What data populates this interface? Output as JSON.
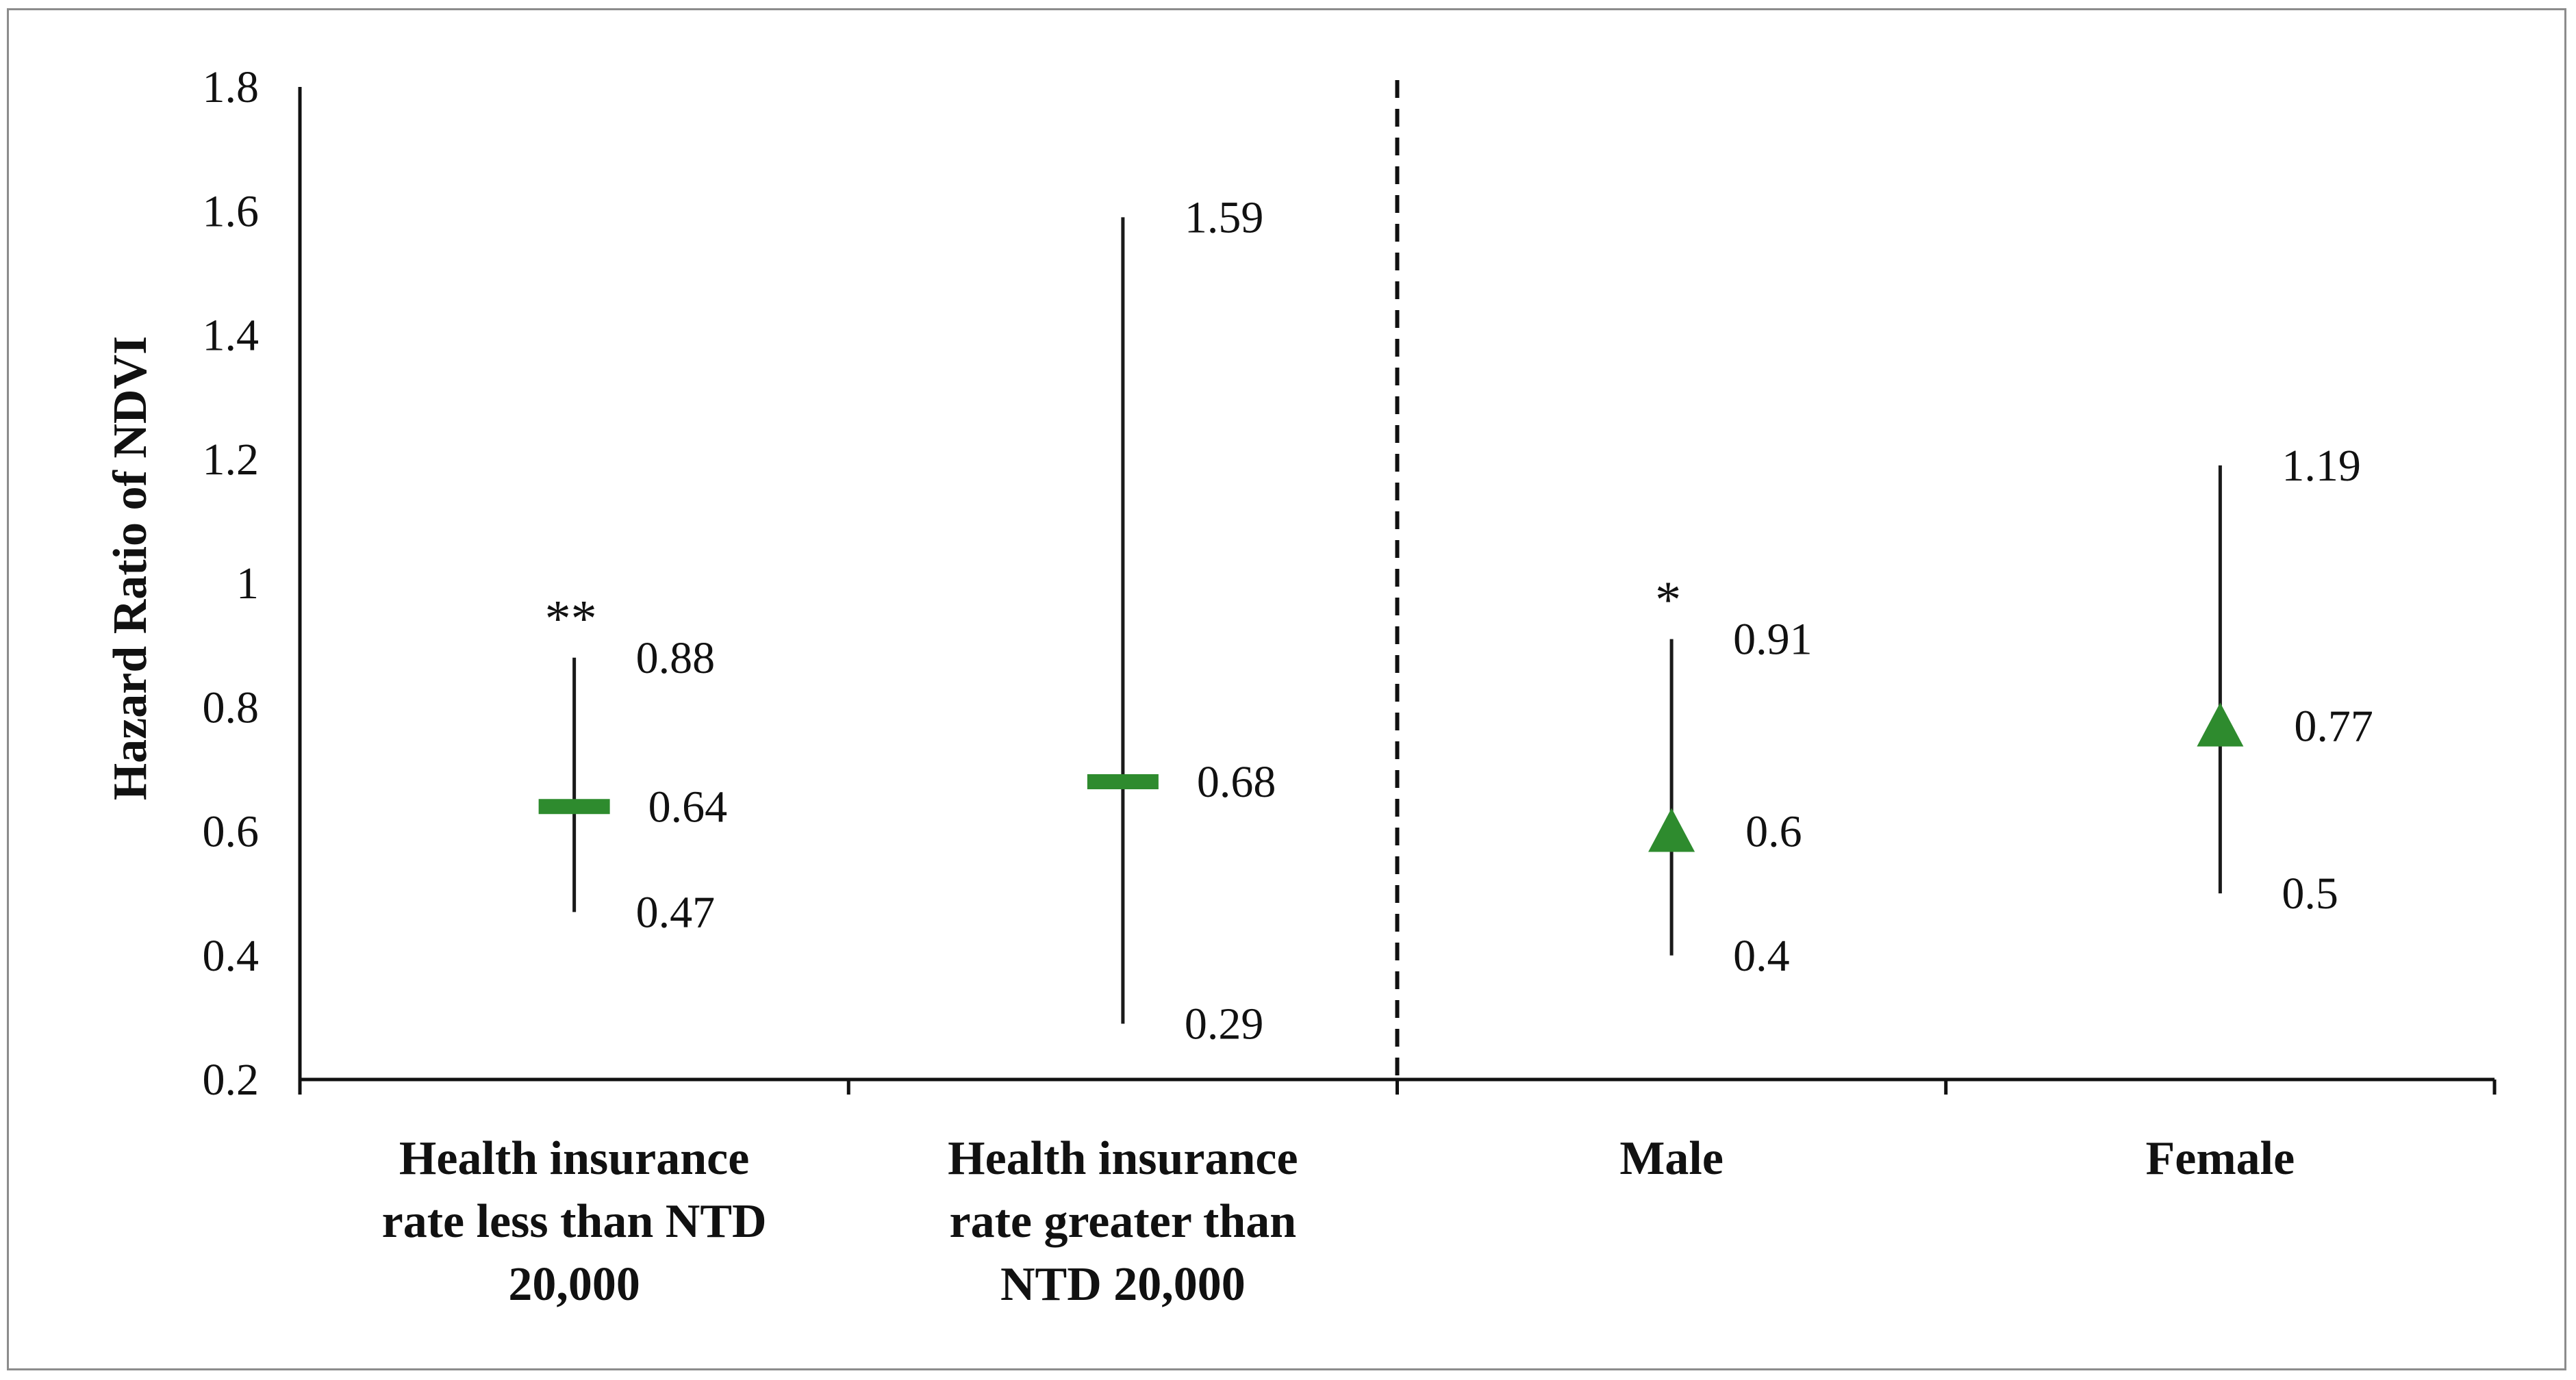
{
  "chart_data": {
    "type": "scatter",
    "title": "",
    "xlabel": "",
    "ylabel": "Hazard Ratio of NDVI",
    "ylim": [
      0.2,
      1.8
    ],
    "yticks": [
      "0.2",
      "0.4",
      "0.6",
      "0.8",
      "1",
      "1.2",
      "1.4",
      "1.6",
      "1.8"
    ],
    "grid": false,
    "legend": "none",
    "divider_after_category": 2,
    "colors": {
      "marker": "#2e8b2e",
      "whisker": "#1a1a1a",
      "axis": "#111111"
    },
    "categories": [
      {
        "name": "Health insurance rate less than NTD 20,000",
        "lines": [
          "Health insurance",
          "rate less than NTD",
          "20,000"
        ],
        "hr": 0.64,
        "lower": 0.47,
        "upper": 0.88,
        "hr_label": "0.64",
        "lower_label": "0.47",
        "upper_label": "0.88",
        "marker": "dash",
        "significance": "**"
      },
      {
        "name": "Health insurance rate greater than NTD 20,000",
        "lines": [
          "Health insurance",
          "rate greater than",
          "NTD 20,000"
        ],
        "hr": 0.68,
        "lower": 0.29,
        "upper": 1.59,
        "hr_label": "0.68",
        "lower_label": "0.29",
        "upper_label": "1.59",
        "marker": "dash",
        "significance": ""
      },
      {
        "name": "Male",
        "lines": [
          "Male"
        ],
        "hr": 0.6,
        "lower": 0.4,
        "upper": 0.91,
        "hr_label": "0.6",
        "lower_label": "0.4",
        "upper_label": "0.91",
        "marker": "triangle",
        "significance": "*"
      },
      {
        "name": "Female",
        "lines": [
          "Female"
        ],
        "hr": 0.77,
        "lower": 0.5,
        "upper": 1.19,
        "hr_label": "0.77",
        "lower_label": "0.5",
        "upper_label": "1.19",
        "marker": "triangle",
        "significance": ""
      }
    ]
  }
}
